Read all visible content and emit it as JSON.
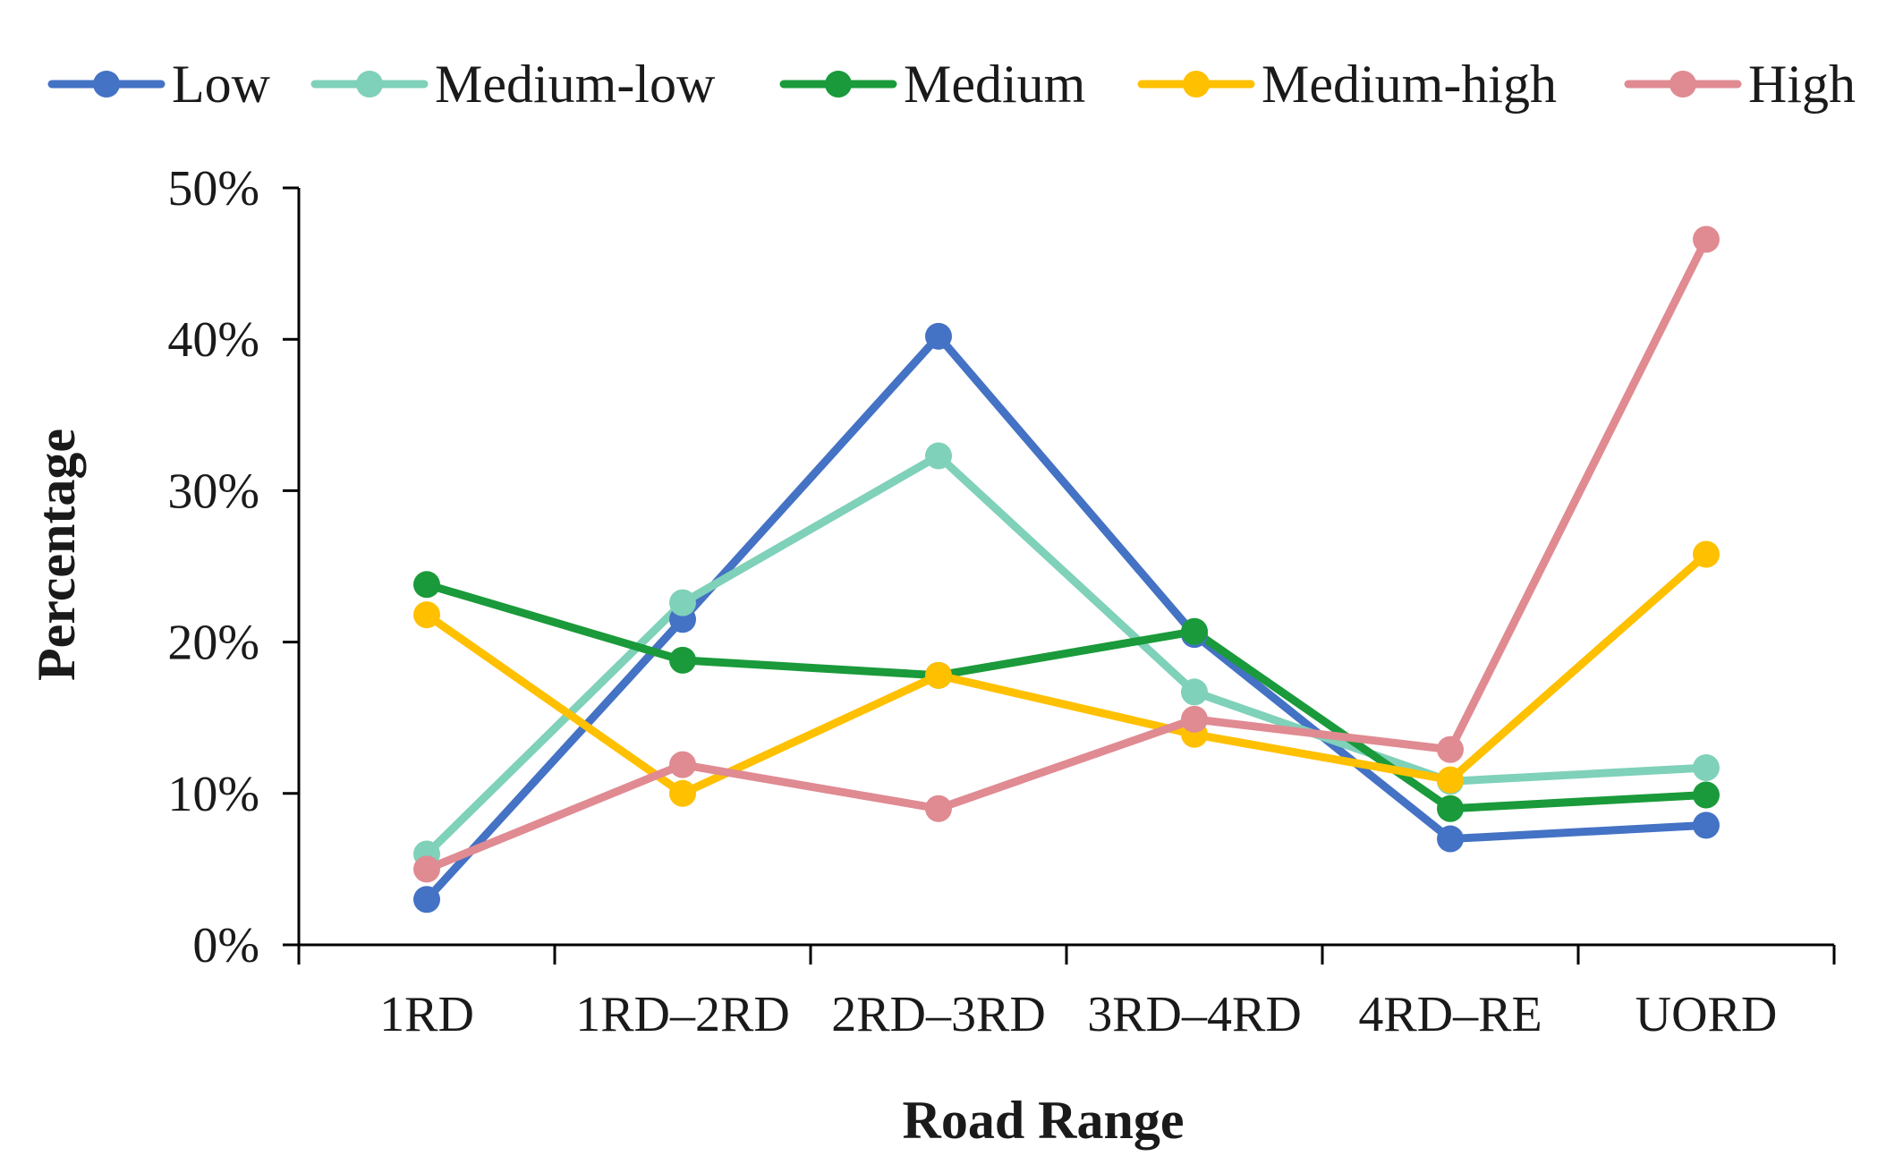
{
  "chart_data": {
    "type": "line",
    "title": "",
    "xlabel": "Road Range",
    "ylabel": "Percentage",
    "ylim": [
      0,
      50
    ],
    "ytick_step": 10,
    "ytick_suffix": "%",
    "grid": false,
    "legend_position": "top",
    "categories": [
      "1RD",
      "1RD–2RD",
      "2RD–3RD",
      "3RD–4RD",
      "4RD–RE",
      "UORD"
    ],
    "series": [
      {
        "name": "Low",
        "color": "#4472C4",
        "values": [
          3.0,
          21.5,
          40.2,
          20.5,
          7.0,
          7.9
        ]
      },
      {
        "name": "Medium-low",
        "color": "#7FD1B9",
        "values": [
          6.0,
          22.6,
          32.3,
          16.7,
          10.8,
          11.7
        ]
      },
      {
        "name": "Medium",
        "color": "#1A9A3A",
        "values": [
          23.8,
          18.8,
          17.8,
          20.7,
          9.0,
          9.9
        ]
      },
      {
        "name": "Medium-high",
        "color": "#FFC000",
        "values": [
          21.8,
          10.0,
          17.8,
          13.9,
          10.9,
          25.8
        ]
      },
      {
        "name": "High",
        "color": "#E08A92",
        "values": [
          5.0,
          11.9,
          9.0,
          14.9,
          12.9,
          46.6
        ]
      }
    ]
  }
}
